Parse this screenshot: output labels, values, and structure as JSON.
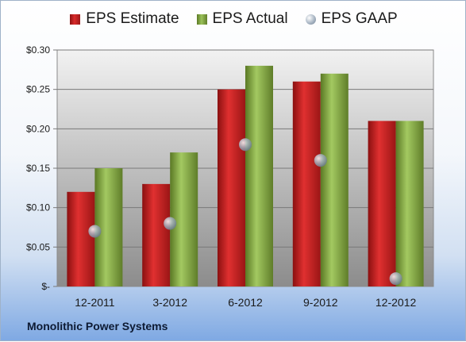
{
  "company": "Monolithic Power Systems",
  "chart_data": {
    "type": "bar",
    "categories": [
      "12-2011",
      "3-2012",
      "6-2012",
      "9-2012",
      "12-2012"
    ],
    "series": [
      {
        "name": "EPS Estimate",
        "type": "bar",
        "color": "#c81f1f",
        "values": [
          0.12,
          0.13,
          0.25,
          0.26,
          0.21
        ]
      },
      {
        "name": "EPS Actual",
        "type": "bar",
        "color": "#8db04a",
        "values": [
          0.15,
          0.17,
          0.28,
          0.27,
          0.21
        ]
      },
      {
        "name": "EPS GAAP",
        "type": "scatter",
        "color": "#9aa7b5",
        "values": [
          0.07,
          0.08,
          0.18,
          0.16,
          0.01
        ]
      }
    ],
    "yticks": [
      "$-",
      "$0.05",
      "$0.10",
      "$0.15",
      "$0.20",
      "$0.25",
      "$0.30"
    ],
    "ylim": [
      0,
      0.3
    ],
    "grid": true,
    "legend": "top-center"
  }
}
